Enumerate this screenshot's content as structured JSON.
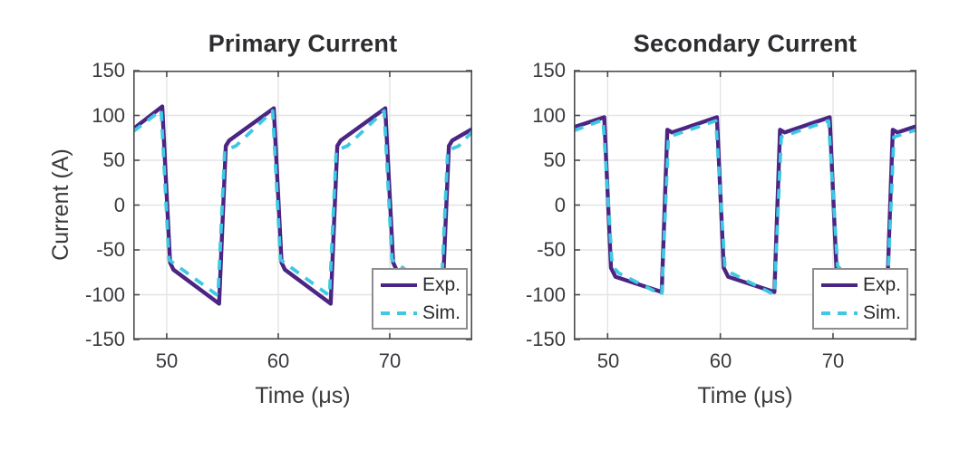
{
  "figure": {
    "background": "#ffffff",
    "axis_color": "#4b4b4f",
    "grid_color": "#e4e4e4"
  },
  "chart_data": [
    {
      "type": "line",
      "title": "Primary Current",
      "xlabel": "Time (μs)",
      "ylabel": "Current (A)",
      "xlim": [
        47,
        77.4
      ],
      "ylim": [
        -150,
        150
      ],
      "xticks": [
        50,
        60,
        70
      ],
      "yticks": [
        150,
        100,
        50,
        0,
        -50,
        -100,
        -150
      ],
      "xtick_labels": [
        "50",
        "60",
        "70"
      ],
      "ytick_labels": [
        "150",
        "100",
        "50",
        "0",
        "-50",
        "-100",
        "-150"
      ],
      "grid": true,
      "legend_position": "bottom-right",
      "series": [
        {
          "name": "Exp.",
          "color": "#4c2483",
          "style": "solid",
          "points": [
            [
              47,
              85
            ],
            [
              49.6,
              110
            ],
            [
              50.3,
              -64
            ],
            [
              50.6,
              -72
            ],
            [
              54.7,
              -110
            ],
            [
              55.3,
              66
            ],
            [
              55.6,
              72
            ],
            [
              59.6,
              108
            ],
            [
              60.3,
              -64
            ],
            [
              60.6,
              -72
            ],
            [
              64.7,
              -110
            ],
            [
              65.3,
              66
            ],
            [
              65.6,
              72
            ],
            [
              69.6,
              108
            ],
            [
              70.3,
              -64
            ],
            [
              70.6,
              -72
            ],
            [
              74.7,
              -110
            ],
            [
              75.3,
              66
            ],
            [
              75.6,
              72
            ],
            [
              77.4,
              85
            ]
          ]
        },
        {
          "name": "Sim.",
          "color": "#3ec8e3",
          "style": "dashed",
          "points": [
            [
              47,
              82
            ],
            [
              49.5,
              106
            ],
            [
              50.2,
              -61
            ],
            [
              54.6,
              -101
            ],
            [
              55.2,
              61
            ],
            [
              56.2,
              66
            ],
            [
              59.5,
              105
            ],
            [
              60.2,
              -61
            ],
            [
              64.6,
              -101
            ],
            [
              65.2,
              61
            ],
            [
              66.2,
              66
            ],
            [
              69.5,
              105
            ],
            [
              70.2,
              -61
            ],
            [
              74.6,
              -101
            ],
            [
              75.2,
              61
            ],
            [
              76.2,
              66
            ],
            [
              77.4,
              82
            ]
          ]
        }
      ]
    },
    {
      "type": "line",
      "title": "Secondary Current",
      "xlabel": "Time (μs)",
      "xlim": [
        47,
        77.4
      ],
      "ylim": [
        -150,
        150
      ],
      "xticks": [
        50,
        60,
        70
      ],
      "yticks": [
        150,
        100,
        50,
        0,
        -50,
        -100,
        -150
      ],
      "xtick_labels": [
        "50",
        "60",
        "70"
      ],
      "ytick_labels": [
        "150",
        "100",
        "50",
        "0",
        "-50",
        "-100",
        "-150"
      ],
      "grid": true,
      "legend_position": "bottom-right",
      "series": [
        {
          "name": "Exp.",
          "color": "#4c2483",
          "style": "solid",
          "points": [
            [
              47,
              87
            ],
            [
              49.7,
              98
            ],
            [
              50.3,
              -70
            ],
            [
              50.7,
              -80
            ],
            [
              54.8,
              -97
            ],
            [
              55.3,
              84
            ],
            [
              55.7,
              81
            ],
            [
              59.7,
              98
            ],
            [
              60.3,
              -70
            ],
            [
              60.7,
              -80
            ],
            [
              64.8,
              -97
            ],
            [
              65.3,
              84
            ],
            [
              65.7,
              81
            ],
            [
              69.7,
              98
            ],
            [
              70.3,
              -70
            ],
            [
              70.7,
              -80
            ],
            [
              74.8,
              -97
            ],
            [
              75.3,
              84
            ],
            [
              75.7,
              81
            ],
            [
              77.4,
              88
            ]
          ]
        },
        {
          "name": "Sim.",
          "color": "#3ec8e3",
          "style": "dashed",
          "points": [
            [
              47,
              83
            ],
            [
              49.6,
              95
            ],
            [
              50.4,
              -68
            ],
            [
              51,
              -76
            ],
            [
              54.8,
              -100
            ],
            [
              55.4,
              76
            ],
            [
              59.6,
              94
            ],
            [
              60.4,
              -68
            ],
            [
              61,
              -76
            ],
            [
              64.8,
              -100
            ],
            [
              65.4,
              76
            ],
            [
              69.6,
              94
            ],
            [
              70.4,
              -68
            ],
            [
              71,
              -76
            ],
            [
              74.8,
              -100
            ],
            [
              75.4,
              76
            ],
            [
              77.4,
              84
            ]
          ]
        }
      ]
    }
  ]
}
